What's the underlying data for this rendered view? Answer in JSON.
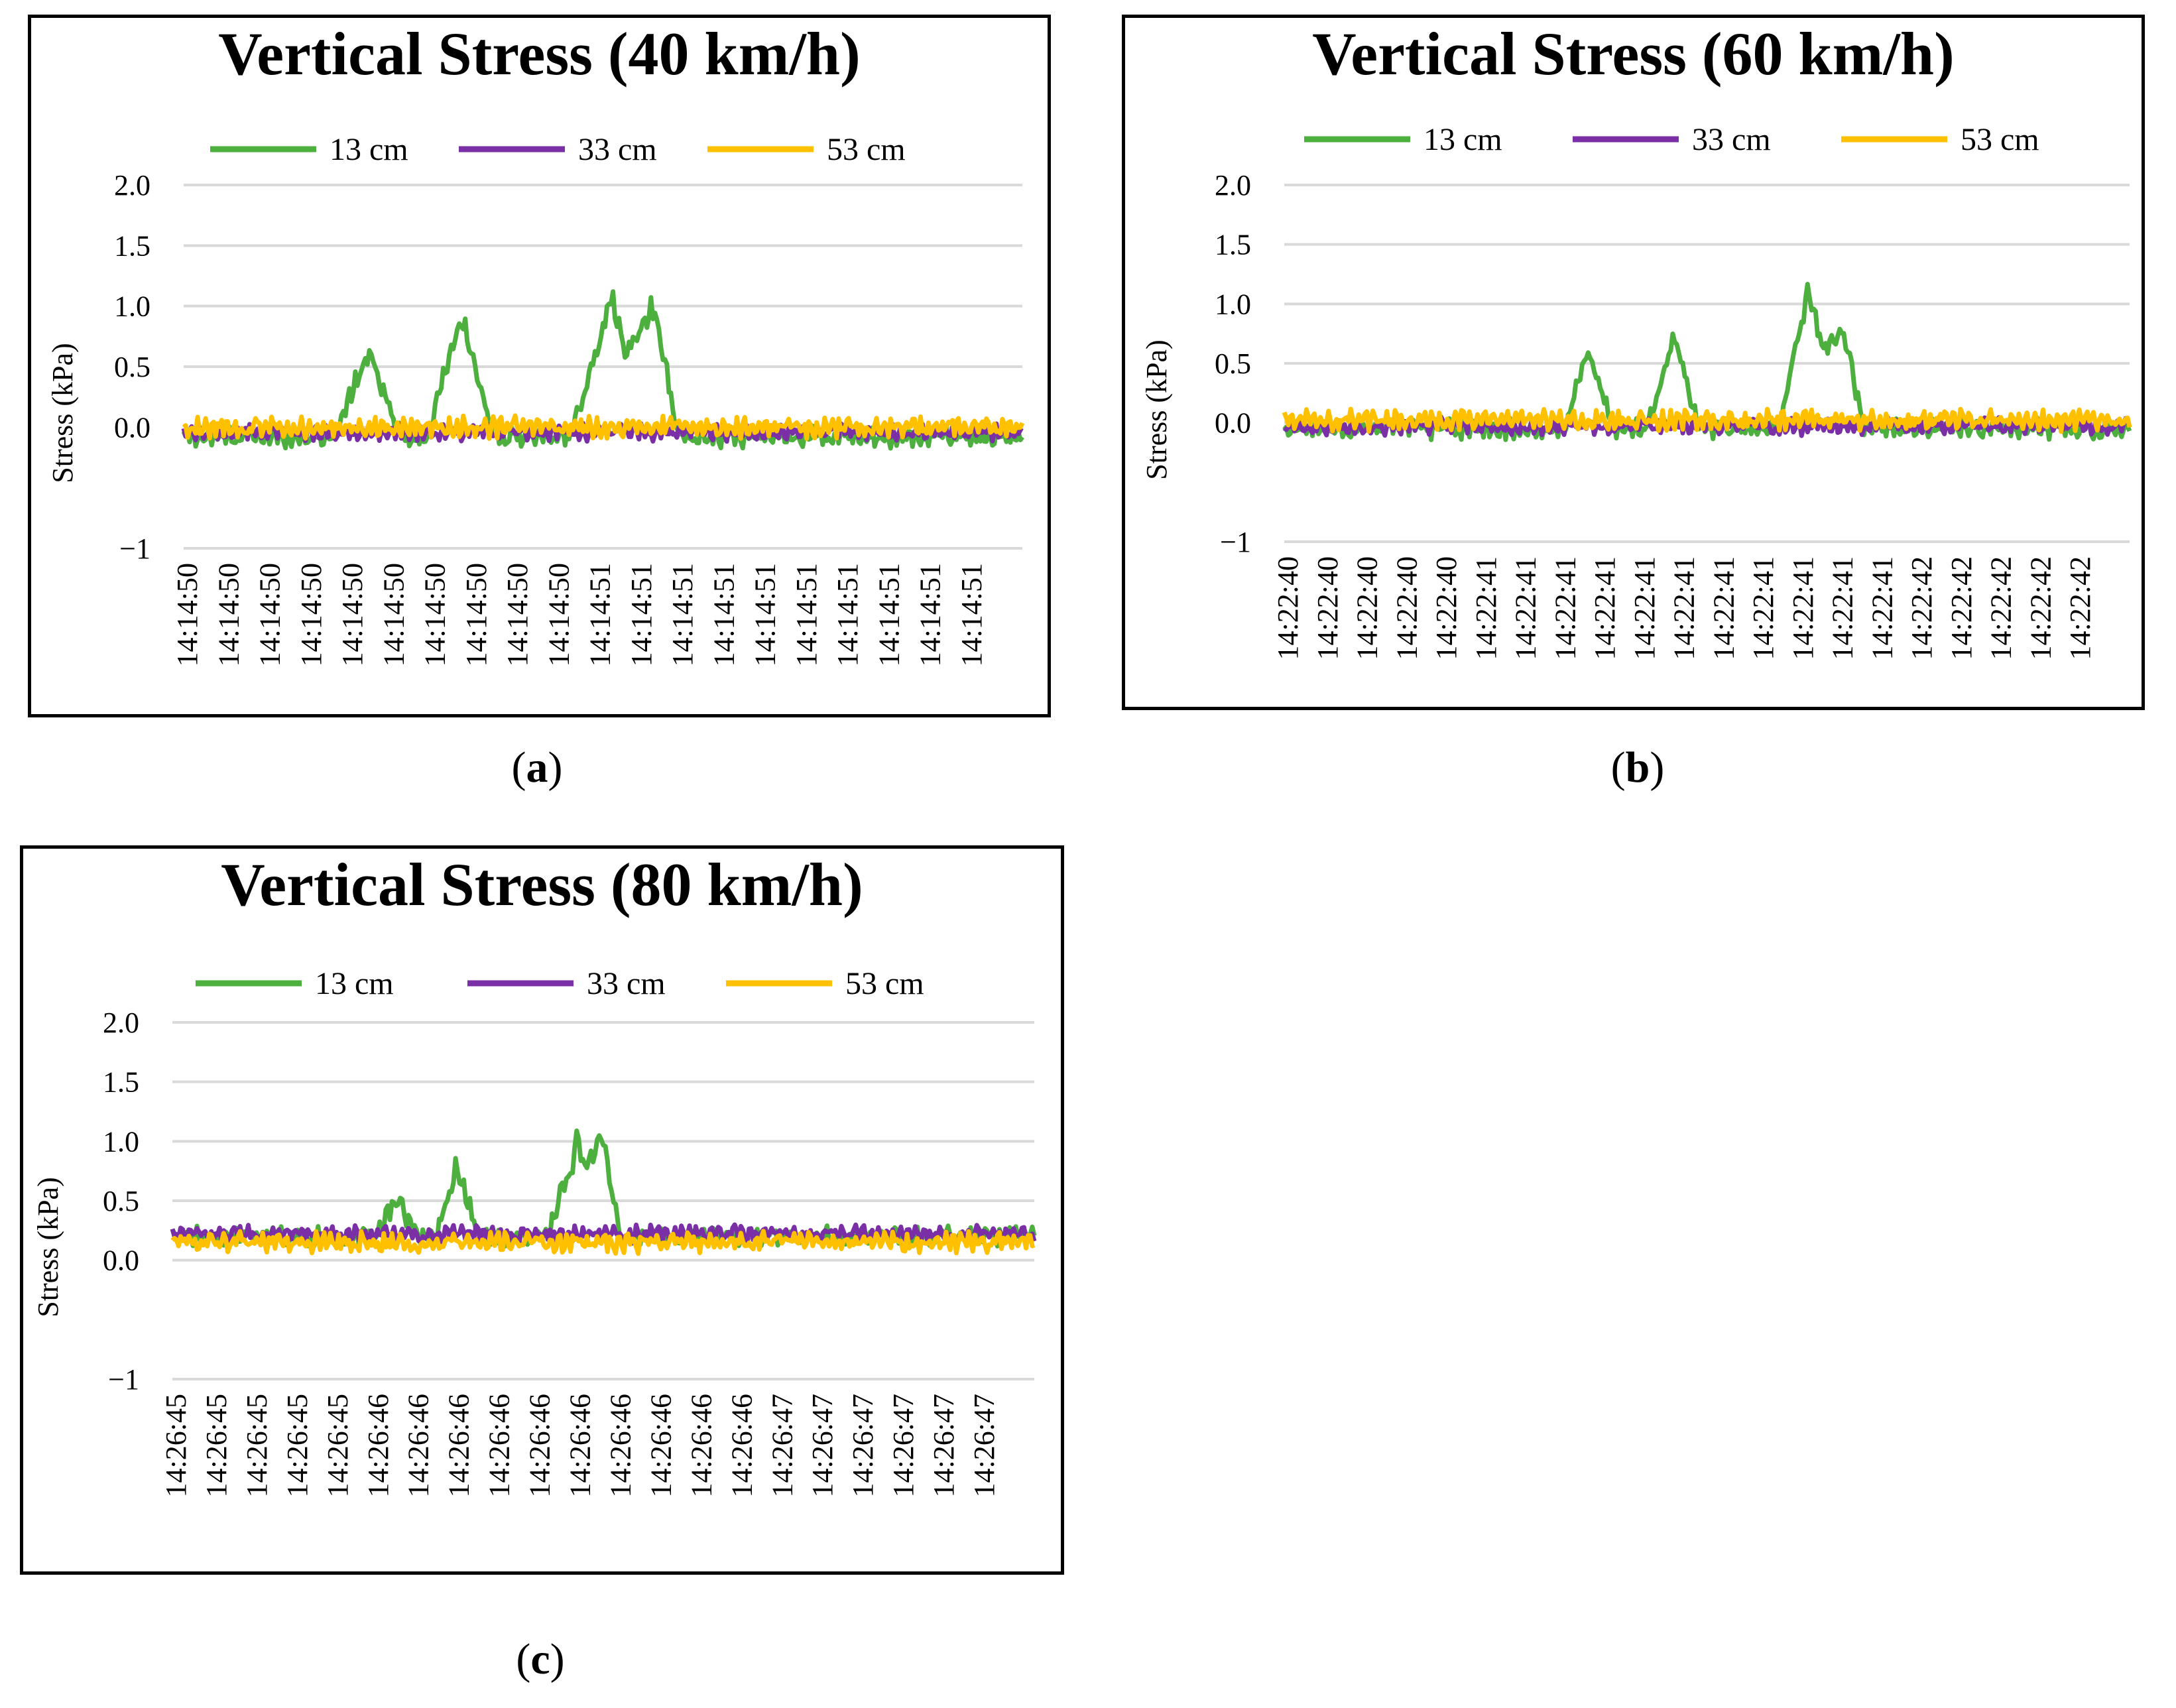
{
  "captions": {
    "a_open": "(",
    "a_letter": "a",
    "a_close": ")",
    "b_open": "(",
    "b_letter": "b",
    "b_close": ")",
    "c_open": "(",
    "c_letter": "c",
    "c_close": ")"
  },
  "colors": {
    "s13": "#4CAF3E",
    "s33": "#7B2FA6",
    "s53": "#FFC000",
    "grid": "#d9d9d9"
  },
  "chart_data": [
    {
      "type": "line",
      "title": "Vertical Stress (40 km/h)",
      "ylabel": "Stress (kPa)",
      "xlabel": "",
      "ylim": [
        -1,
        2
      ],
      "yticks": [
        -1,
        0,
        0.5,
        1,
        1.5,
        2
      ],
      "ytick_labels": [
        "−1",
        "0.0",
        "0.5",
        "1.0",
        "1.5",
        "2.0"
      ],
      "legend": [
        "13 cm",
        "33 cm",
        "53 cm"
      ],
      "legend_position": "top",
      "grid": true,
      "xticks": [
        "14:14:50",
        "14:14:50",
        "14:14:50",
        "14:14:50",
        "14:14:50",
        "14:14:50",
        "14:14:50",
        "14:14:50",
        "14:14:50",
        "14:14:50",
        "14:14:51",
        "14:14:51",
        "14:14:51",
        "14:14:51",
        "14:14:51",
        "14:14:51",
        "14:14:51",
        "14:14:51",
        "14:14:51",
        "14:14:51"
      ],
      "series": [
        {
          "name": "13 cm",
          "baseline": -0.08,
          "noise": 0.06,
          "peaks": [
            [
              0.22,
              0.7,
              0.04
            ],
            [
              0.33,
              0.98,
              0.04
            ],
            [
              0.51,
              1.14,
              0.05
            ],
            [
              0.56,
              1.1,
              0.03
            ]
          ]
        },
        {
          "name": "33 cm",
          "baseline": -0.04,
          "noise": 0.05,
          "peaks": []
        },
        {
          "name": "53 cm",
          "baseline": 0.0,
          "noise": 0.06,
          "peaks": []
        }
      ]
    },
    {
      "type": "line",
      "title": "Vertical Stress (60 km/h)",
      "ylabel": "Stress (kPa)",
      "xlabel": "",
      "ylim": [
        -1,
        2
      ],
      "yticks": [
        -1,
        0,
        0.5,
        1,
        1.5,
        2
      ],
      "ytick_labels": [
        "−1",
        "0.0",
        "0.5",
        "1.0",
        "1.5",
        "2.0"
      ],
      "legend": [
        "13 cm",
        "33 cm",
        "53 cm"
      ],
      "legend_position": "top",
      "grid": true,
      "xticks": [
        "14:22:40",
        "14:22:40",
        "14:22:40",
        "14:22:40",
        "14:22:40",
        "14:22:41",
        "14:22:41",
        "14:22:41",
        "14:22:41",
        "14:22:41",
        "14:22:41",
        "14:22:41",
        "14:22:41",
        "14:22:41",
        "14:22:41",
        "14:22:41",
        "14:22:42",
        "14:22:42",
        "14:22:42",
        "14:22:42",
        "14:22:42"
      ],
      "series": [
        {
          "name": "13 cm",
          "baseline": -0.05,
          "noise": 0.06,
          "peaks": [
            [
              0.36,
              0.65,
              0.03
            ],
            [
              0.46,
              0.8,
              0.03
            ],
            [
              0.62,
              1.25,
              0.035
            ],
            [
              0.66,
              0.95,
              0.025
            ]
          ]
        },
        {
          "name": "33 cm",
          "baseline": -0.03,
          "noise": 0.05,
          "peaks": []
        },
        {
          "name": "53 cm",
          "baseline": 0.02,
          "noise": 0.06,
          "peaks": []
        }
      ]
    },
    {
      "type": "line",
      "title": "Vertical Stress (80 km/h)",
      "ylabel": "Stress (kPa)",
      "xlabel": "",
      "ylim": [
        -1,
        2
      ],
      "yticks": [
        -1,
        0,
        0.5,
        1,
        1.5,
        2
      ],
      "ytick_labels": [
        "−1",
        "0.0",
        "0.5",
        "1.0",
        "1.5",
        "2.0"
      ],
      "legend": [
        "13 cm",
        "33 cm",
        "53 cm"
      ],
      "legend_position": "top",
      "grid": true,
      "xticks": [
        "14:26:45",
        "14:26:45",
        "14:26:45",
        "14:26:45",
        "14:26:45",
        "14:26:46",
        "14:26:46",
        "14:26:46",
        "14:26:46",
        "14:26:46",
        "14:26:46",
        "14:26:46",
        "14:26:46",
        "14:26:46",
        "14:26:46",
        "14:26:47",
        "14:26:47",
        "14:26:47",
        "14:26:47",
        "14:26:47",
        "14:26:47"
      ],
      "series": [
        {
          "name": "13 cm",
          "baseline": 0.2,
          "noise": 0.06,
          "peaks": [
            [
              0.26,
              0.55,
              0.025
            ],
            [
              0.33,
              0.82,
              0.025
            ],
            [
              0.47,
              1.05,
              0.035
            ],
            [
              0.5,
              1.0,
              0.02
            ]
          ]
        },
        {
          "name": "33 cm",
          "baseline": 0.22,
          "noise": 0.05,
          "peaks": []
        },
        {
          "name": "53 cm",
          "baseline": 0.15,
          "noise": 0.06,
          "peaks": []
        }
      ]
    }
  ]
}
